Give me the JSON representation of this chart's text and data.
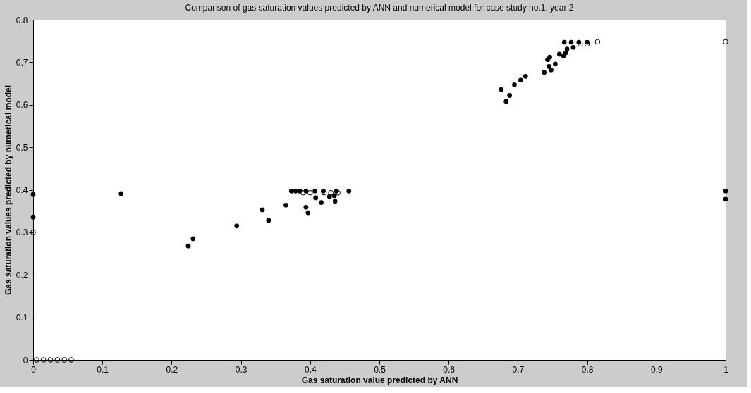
{
  "chart_data": {
    "type": "scatter",
    "title": "Comparison of gas saturation values predicted by ANN and numerical model for case study no.1: year 2",
    "xlabel": "Gas saturation value predicted by ANN",
    "ylabel": "Gas saturation values predicted by numerical model",
    "xlim": [
      0,
      1
    ],
    "ylim": [
      0,
      0.8
    ],
    "xticks": [
      0,
      0.1,
      0.2,
      0.3,
      0.4,
      0.5,
      0.6,
      0.7,
      0.8,
      0.9,
      1
    ],
    "yticks": [
      0,
      0.1,
      0.2,
      0.3,
      0.4,
      0.5,
      0.6,
      0.7,
      0.8
    ],
    "grid": false,
    "marker": "circle",
    "series": [
      {
        "color": "#000000",
        "x": [
          0.005,
          0.015,
          0.025,
          0.035,
          0.045,
          0.055,
          0,
          0.39,
          0.4,
          0.42,
          0.43,
          0.44,
          0.79,
          0.8,
          0.815,
          1
        ],
        "values": [
          0,
          0,
          0,
          0,
          0,
          0,
          0.3,
          0.393,
          0.393,
          0.393,
          0.393,
          0.393,
          0.743,
          0.743,
          0.748,
          0.748
        ]
      },
      {
        "color": "#000000",
        "x": [
          0,
          0,
          0.127,
          0.224,
          0.231,
          0.294,
          0.331,
          0.34,
          0.365,
          0.373,
          0.379,
          0.385,
          0.394,
          0.407,
          0.419,
          0.438,
          0.456,
          0.394,
          0.397,
          0.408,
          0.416,
          0.428,
          0.435,
          0.436,
          0.676,
          0.688,
          0.683,
          0.695,
          0.704,
          0.711,
          0.738,
          0.745,
          0.748,
          0.754,
          0.746,
          0.743,
          0.76,
          0.766,
          0.769,
          0.767,
          0.777,
          0.788,
          0.8,
          0.771,
          0.78,
          1,
          1
        ],
        "values": [
          0.389,
          0.336,
          0.391,
          0.268,
          0.285,
          0.315,
          0.353,
          0.328,
          0.364,
          0.397,
          0.397,
          0.397,
          0.397,
          0.397,
          0.397,
          0.397,
          0.397,
          0.359,
          0.346,
          0.381,
          0.37,
          0.384,
          0.386,
          0.373,
          0.636,
          0.622,
          0.608,
          0.647,
          0.658,
          0.667,
          0.676,
          0.69,
          0.682,
          0.696,
          0.712,
          0.706,
          0.719,
          0.715,
          0.722,
          0.747,
          0.747,
          0.747,
          0.747,
          0.731,
          0.735,
          0.397,
          0.378
        ]
      }
    ]
  }
}
